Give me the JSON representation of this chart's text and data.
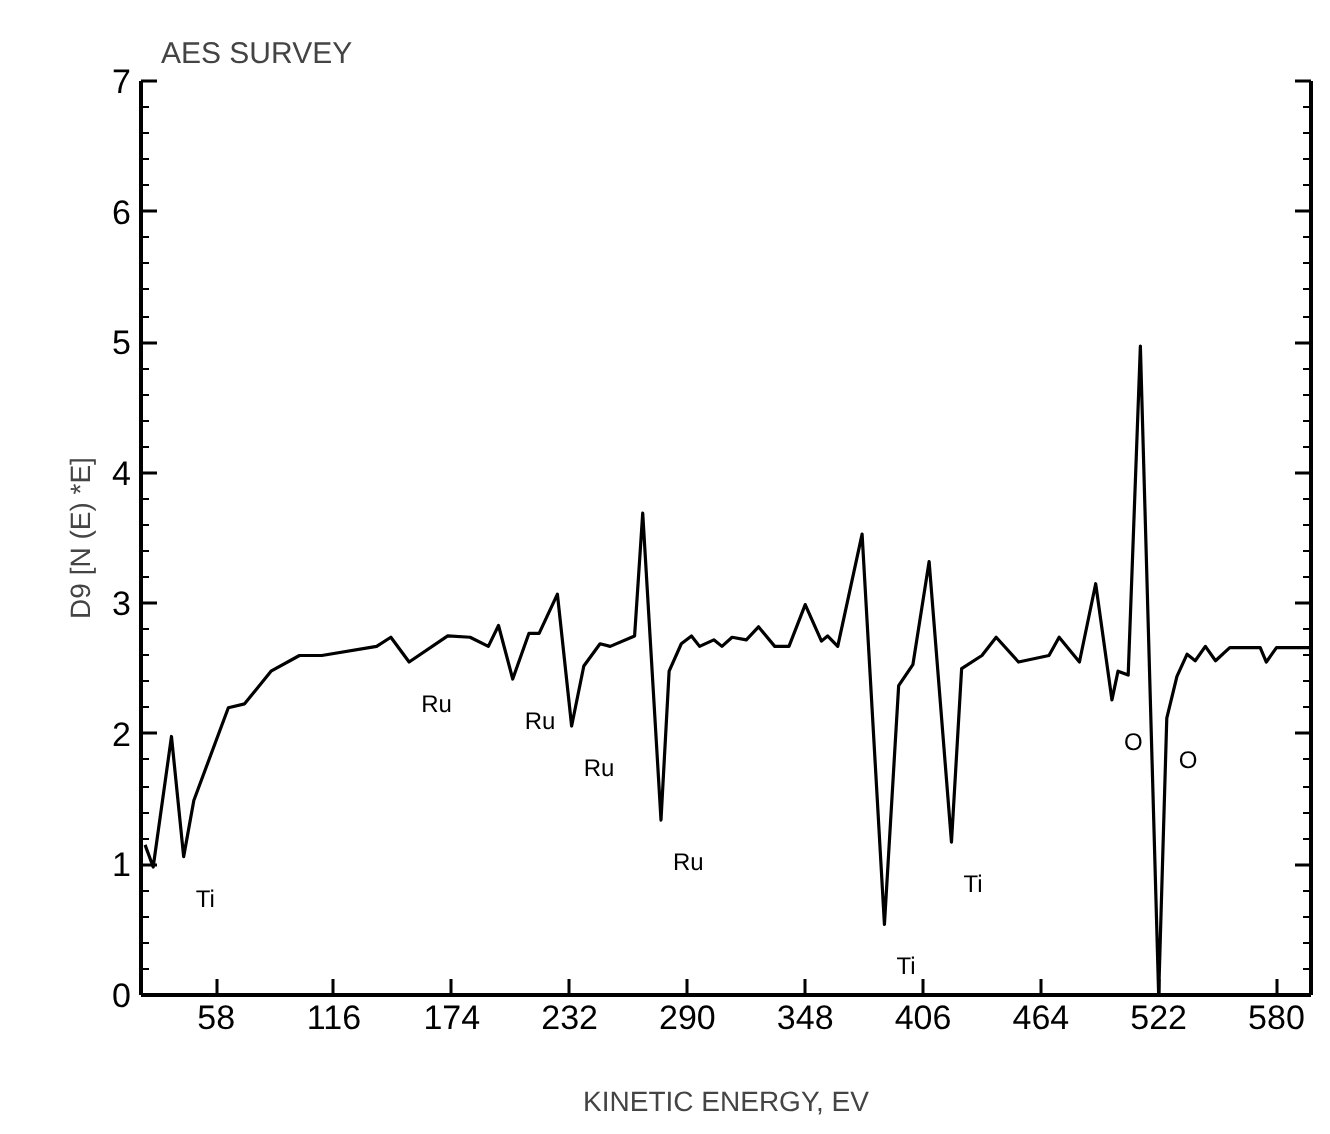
{
  "chart_data": {
    "type": "line",
    "title": "AES SURVEY",
    "xlabel": "KINETIC ENERGY, EV",
    "ylabel": "D9 [N (E) *E]",
    "xlim": [
      21,
      597
    ],
    "ylim": [
      0,
      7
    ],
    "xticks": [
      58,
      116,
      174,
      232,
      290,
      348,
      406,
      464,
      522,
      580
    ],
    "yticks": [
      0,
      1,
      2,
      3,
      4,
      5,
      6,
      7
    ],
    "grid": false,
    "marker": "none",
    "line_style": "solid",
    "series": [
      {
        "color": "#000000",
        "x": [
          23,
          27,
          36,
          42,
          47,
          64,
          72,
          85,
          99,
          110,
          137,
          144,
          153,
          172,
          183,
          192,
          197,
          204,
          212,
          217,
          226,
          233,
          239,
          247,
          252,
          264,
          268,
          277,
          281,
          287,
          292,
          296,
          303,
          307,
          312,
          319,
          325,
          333,
          340,
          348,
          356,
          359,
          364,
          376,
          387,
          394,
          401,
          409,
          420,
          425,
          435,
          442,
          453,
          468,
          473,
          483,
          491,
          499,
          502,
          507,
          513,
          522,
          526,
          531,
          536,
          540,
          545,
          550,
          557,
          572,
          575,
          580,
          596
        ],
        "values": [
          1.15,
          0.98,
          1.98,
          1.06,
          1.49,
          2.2,
          2.23,
          2.48,
          2.6,
          2.6,
          2.67,
          2.74,
          2.55,
          2.75,
          2.74,
          2.67,
          2.83,
          2.42,
          2.77,
          2.77,
          3.07,
          2.06,
          2.52,
          2.69,
          2.67,
          2.75,
          3.69,
          1.34,
          2.48,
          2.69,
          2.75,
          2.67,
          2.72,
          2.67,
          2.74,
          2.72,
          2.82,
          2.67,
          2.67,
          2.99,
          2.71,
          2.75,
          2.67,
          3.53,
          0.54,
          2.37,
          2.53,
          3.32,
          1.17,
          2.5,
          2.6,
          2.74,
          2.55,
          2.6,
          2.74,
          2.55,
          3.15,
          2.26,
          2.48,
          2.45,
          4.97,
          0.0,
          2.12,
          2.44,
          2.61,
          2.56,
          2.67,
          2.56,
          2.66,
          2.66,
          2.55,
          2.66,
          2.66
        ]
      }
    ],
    "annotations": [
      {
        "text": "Ti",
        "x": 42,
        "y": 1.06
      },
      {
        "text": "Ru",
        "x": 153,
        "y": 2.55
      },
      {
        "text": "Ru",
        "x": 204,
        "y": 2.42
      },
      {
        "text": "Ru",
        "x": 233,
        "y": 2.06
      },
      {
        "text": "Ru",
        "x": 277,
        "y": 1.34
      },
      {
        "text": "Ti",
        "x": 387,
        "y": 0.54
      },
      {
        "text": "Ti",
        "x": 420,
        "y": 1.17
      },
      {
        "text": "O",
        "x": 499,
        "y": 2.26
      },
      {
        "text": "O",
        "x": 526,
        "y": 2.12
      }
    ]
  }
}
